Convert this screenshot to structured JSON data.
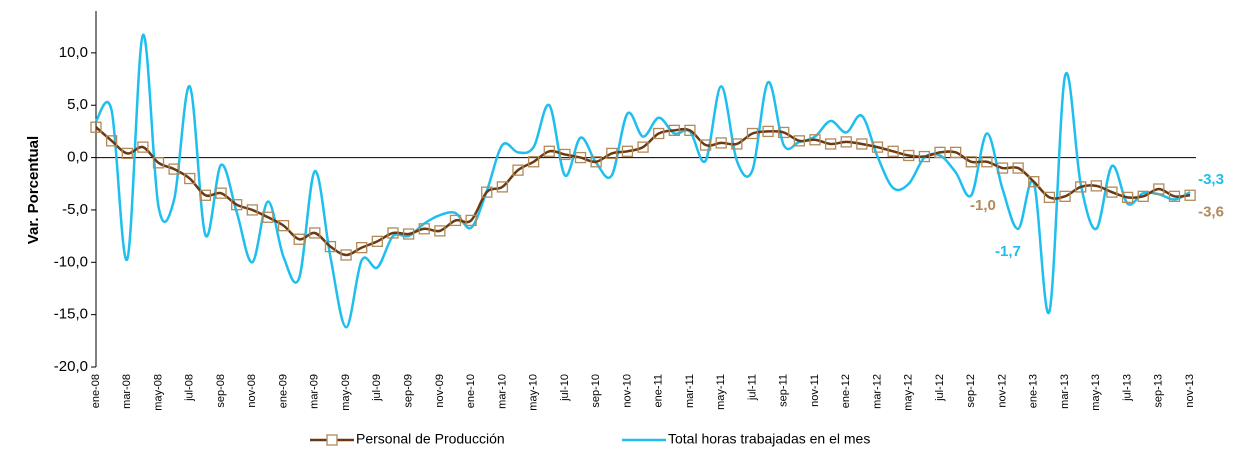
{
  "chart_data": {
    "type": "line",
    "y_label": "Var. Porcentual",
    "categories": [
      "ene-08",
      null,
      "mar-08",
      null,
      "may-08",
      null,
      "jul-08",
      null,
      "sep-08",
      null,
      "nov-08",
      null,
      "ene-09",
      null,
      "mar-09",
      null,
      "may-09",
      null,
      "jul-09",
      null,
      "sep-09",
      null,
      "nov-09",
      null,
      "ene-10",
      null,
      "mar-10",
      null,
      "may-10",
      null,
      "jul-10",
      null,
      "sep-10",
      null,
      "nov-10",
      null,
      "ene-11",
      null,
      "mar-11",
      null,
      "may-11",
      null,
      "jul-11",
      null,
      "sep-11",
      null,
      "nov-11",
      null,
      "ene-12",
      null,
      "mar-12",
      null,
      "may-12",
      null,
      "jul-12",
      null,
      "sep-12",
      null,
      "nov-12",
      null,
      "ene-13",
      null,
      "mar-13",
      null,
      "may-13",
      null,
      "jul-13",
      null,
      "sep-13",
      null,
      "nov-13"
    ],
    "series": [
      {
        "name": "Personal de Producción",
        "color": "#6b3a12",
        "marker_color": "#b08a5a",
        "values": [
          2.9,
          1.6,
          0.4,
          1.0,
          -0.5,
          -1.1,
          -2.0,
          -3.6,
          -3.4,
          -4.5,
          -5.0,
          -5.7,
          -6.5,
          -7.8,
          -7.2,
          -8.5,
          -9.3,
          -8.6,
          -8.0,
          -7.2,
          -7.3,
          -6.8,
          -7.0,
          -6.0,
          -6.0,
          -3.3,
          -2.8,
          -1.2,
          -0.4,
          0.6,
          0.3,
          0.0,
          -0.4,
          0.4,
          0.6,
          1.0,
          2.3,
          2.6,
          2.6,
          1.2,
          1.4,
          1.3,
          2.3,
          2.5,
          2.4,
          1.6,
          1.7,
          1.3,
          1.5,
          1.3,
          1.0,
          0.6,
          0.2,
          0.1,
          0.5,
          0.5,
          -0.4,
          -0.4,
          -1.0,
          -1.0,
          -2.3,
          -3.8,
          -3.7,
          -2.8,
          -2.7,
          -3.3,
          -3.8,
          -3.7,
          -3.0,
          -3.7,
          -3.6
        ],
        "value_labels": [
          null,
          null,
          null,
          null,
          null,
          null,
          null,
          null,
          null,
          null,
          null,
          null,
          null,
          null,
          null,
          null,
          null,
          null,
          null,
          null,
          null,
          null,
          null,
          null,
          null,
          null,
          null,
          null,
          null,
          null,
          null,
          null,
          null,
          null,
          null,
          null,
          null,
          null,
          null,
          null,
          null,
          null,
          null,
          null,
          null,
          null,
          null,
          null,
          null,
          null,
          null,
          null,
          null,
          null,
          null,
          null,
          null,
          null,
          null,
          null,
          null,
          null,
          null,
          null,
          null,
          null,
          null,
          null,
          null,
          null,
          "-3,6"
        ]
      },
      {
        "name": "Total horas trabajadas en el mes",
        "color": "#1ebfef",
        "values": [
          3.5,
          4.5,
          -9.7,
          11.7,
          -4.7,
          -4.0,
          6.8,
          -7.4,
          -0.7,
          -5.2,
          -10.0,
          -4.2,
          -9.5,
          -11.5,
          -1.3,
          -9.5,
          -16.2,
          -9.8,
          -10.5,
          -7.5,
          -7.5,
          -6.3,
          -5.5,
          -5.3,
          -6.7,
          -3.2,
          1.2,
          0.5,
          1.0,
          5.0,
          -1.7,
          1.9,
          -0.5,
          -1.7,
          4.2,
          2.0,
          3.8,
          2.3,
          2.5,
          -0.3,
          6.8,
          -0.3,
          -1.2,
          7.2,
          1.2,
          1.5,
          2.0,
          3.5,
          2.4,
          4.0,
          0.1,
          -2.9,
          -2.5,
          0.0,
          0.2,
          -1.4,
          -3.6,
          2.3,
          -3.0,
          -6.8,
          -2.4,
          -14.7,
          7.8,
          -2.5,
          -6.8,
          -0.8,
          -4.4,
          -3.4,
          -3.5,
          -4.0,
          -3.3
        ],
        "value_labels": [
          null,
          null,
          null,
          null,
          null,
          null,
          null,
          null,
          null,
          null,
          null,
          null,
          null,
          null,
          null,
          null,
          null,
          null,
          null,
          null,
          null,
          null,
          null,
          null,
          null,
          null,
          null,
          null,
          null,
          null,
          null,
          null,
          null,
          null,
          null,
          null,
          null,
          null,
          null,
          null,
          null,
          null,
          null,
          null,
          null,
          null,
          null,
          null,
          null,
          null,
          null,
          null,
          null,
          null,
          null,
          null,
          null,
          null,
          null,
          null,
          null,
          null,
          null,
          null,
          null,
          null,
          null,
          null,
          null,
          null,
          "-3,3"
        ]
      }
    ],
    "annotations": [
      "-1,0",
      "-1,7"
    ],
    "ylim": [
      -20,
      14
    ],
    "yticks": [
      {
        "value": -20,
        "label": "-20,0"
      },
      {
        "value": -15,
        "label": "-15,0"
      },
      {
        "value": -10,
        "label": "-10,0"
      },
      {
        "value": -5,
        "label": "-5,0"
      },
      {
        "value": 0,
        "label": "0,0"
      },
      {
        "value": 5,
        "label": "5,0"
      },
      {
        "value": 10,
        "label": "10,0"
      }
    ],
    "legend": "bottom"
  }
}
